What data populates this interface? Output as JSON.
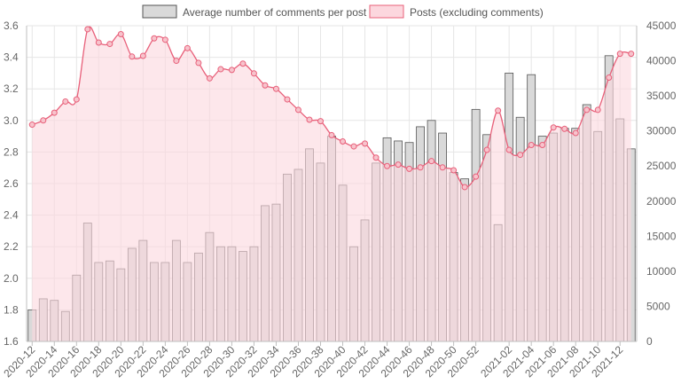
{
  "chart_data": {
    "type": "bar",
    "legend_placement": "top-center",
    "grid": true,
    "categories": [
      "2020-12",
      "2020-13",
      "2020-14",
      "2020-15",
      "2020-16",
      "2020-17",
      "2020-18",
      "2020-19",
      "2020-20",
      "2020-21",
      "2020-22",
      "2020-23",
      "2020-24",
      "2020-25",
      "2020-26",
      "2020-27",
      "2020-28",
      "2020-29",
      "2020-30",
      "2020-31",
      "2020-32",
      "2020-33",
      "2020-34",
      "2020-35",
      "2020-36",
      "2020-37",
      "2020-38",
      "2020-39",
      "2020-40",
      "2020-41",
      "2020-42",
      "2020-43",
      "2020-44",
      "2020-45",
      "2020-46",
      "2020-47",
      "2020-48",
      "2020-49",
      "2020-50",
      "2020-51",
      "2020-52",
      "2020-53",
      "2021-01",
      "2021-02",
      "2021-03",
      "2021-04",
      "2021-05",
      "2021-06",
      "2021-07",
      "2021-08",
      "2021-09",
      "2021-10",
      "2021-11",
      "2021-12",
      "2021-13"
    ],
    "x_tick_labels": [
      "2020-12",
      "2020-14",
      "2020-16",
      "2020-18",
      "2020-20",
      "2020-22",
      "2020-24",
      "2020-26",
      "2020-28",
      "2020-30",
      "2020-32",
      "2020-34",
      "2020-36",
      "2020-38",
      "2020-40",
      "2020-42",
      "2020-44",
      "2020-46",
      "2020-48",
      "2020-50",
      "2020-52",
      "2021-02",
      "2021-04",
      "2021-06",
      "2021-08",
      "2021-10",
      "2021-12"
    ],
    "series": [
      {
        "name": "Average number of comments per post",
        "type": "bar",
        "axis": "left",
        "color": "#d9d9d9",
        "border_color": "#555555",
        "values": [
          1.8,
          1.87,
          1.86,
          1.79,
          2.02,
          2.35,
          2.1,
          2.11,
          2.06,
          2.19,
          2.24,
          2.1,
          2.1,
          2.24,
          2.1,
          2.16,
          2.29,
          2.2,
          2.2,
          2.17,
          2.2,
          2.46,
          2.47,
          2.66,
          2.69,
          2.82,
          2.73,
          2.9,
          2.59,
          2.2,
          2.37,
          2.73,
          2.89,
          2.87,
          2.86,
          2.96,
          3.0,
          2.92,
          2.67,
          2.63,
          3.07,
          2.91,
          2.34,
          3.3,
          3.02,
          3.29,
          2.9,
          2.92,
          2.95,
          2.95,
          3.1,
          2.93,
          3.41,
          3.01,
          2.82
        ]
      },
      {
        "name": "Posts (excluding comments)",
        "type": "area",
        "axis": "right",
        "color": "#e8607a",
        "fill_color": "#fcd7de",
        "values": [
          30900,
          31500,
          32600,
          34200,
          34500,
          44500,
          42600,
          42400,
          43800,
          40600,
          40700,
          43200,
          43000,
          40000,
          41800,
          39700,
          37500,
          38800,
          38700,
          39600,
          38200,
          36500,
          36000,
          34500,
          33000,
          31600,
          31400,
          29400,
          28500,
          27800,
          28200,
          26200,
          25000,
          25200,
          24600,
          24800,
          25700,
          24800,
          24400,
          22000,
          23500,
          27300,
          32900,
          27300,
          26600,
          28000,
          28000,
          30500,
          30300,
          29700,
          33000,
          33000,
          37600,
          41000,
          41000
        ]
      }
    ],
    "y_left": {
      "min": 1.6,
      "max": 3.6,
      "ticks": [
        "1.6",
        "1.8",
        "2.0",
        "2.2",
        "2.4",
        "2.6",
        "2.8",
        "3.0",
        "3.2",
        "3.4",
        "3.6"
      ]
    },
    "y_right": {
      "min": 0,
      "max": 45000,
      "ticks": [
        "0",
        "5000",
        "10000",
        "15000",
        "20000",
        "25000",
        "30000",
        "35000",
        "40000",
        "45000"
      ]
    }
  }
}
